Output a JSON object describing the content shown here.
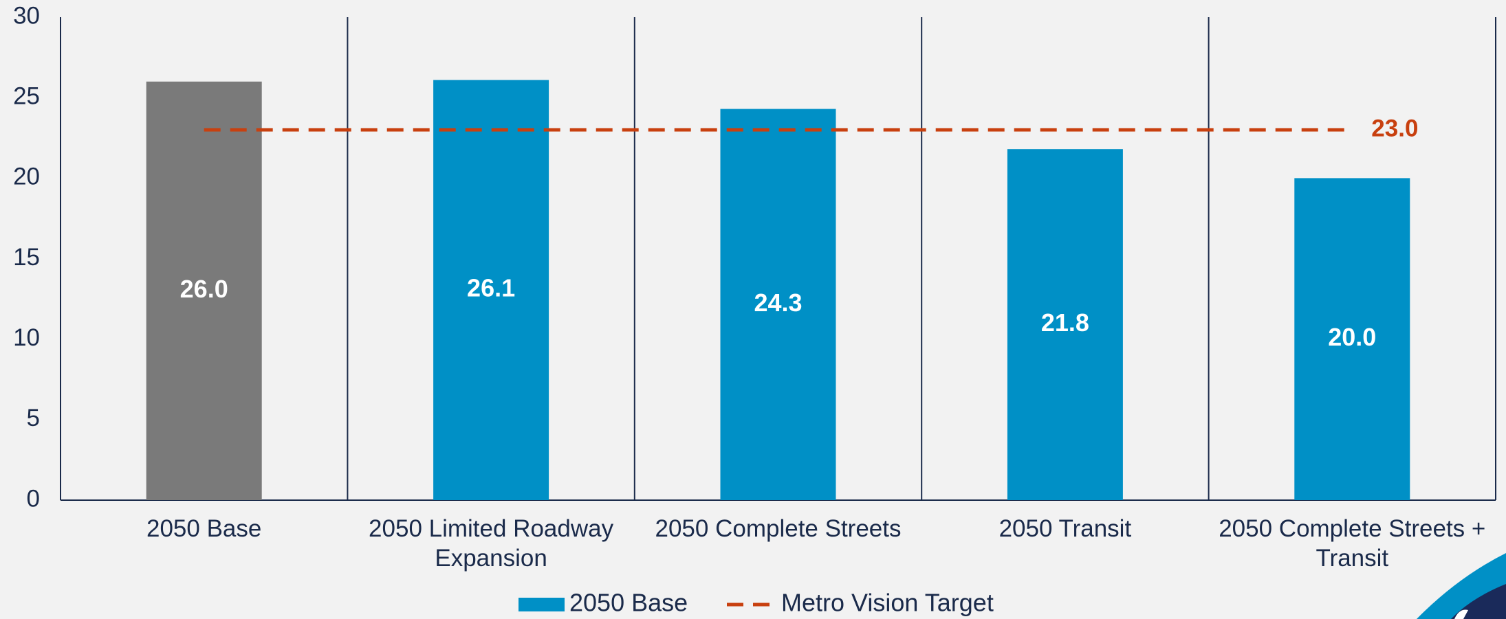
{
  "chart_data": {
    "type": "bar",
    "categories": [
      "2050 Base",
      "2050 Limited Roadway Expansion",
      "2050 Complete Streets",
      "2050 Transit",
      "2050 Complete Streets + Transit"
    ],
    "series": [
      {
        "name": "2050 Base",
        "color": "#0090c6",
        "values": [
          26.0,
          26.1,
          24.3,
          21.8,
          20.0
        ],
        "value_labels": [
          "26.0",
          "26.1",
          "24.3",
          "21.8",
          "20.0"
        ],
        "colors": [
          "#7a7a7a",
          "#0090c6",
          "#0090c6",
          "#0090c6",
          "#0090c6"
        ]
      }
    ],
    "target": {
      "name": "Metro Vision Target",
      "color": "#c8400f",
      "value": 23.0,
      "value_label": "23.0"
    },
    "ylim": [
      0,
      30
    ],
    "yticks": [
      0,
      5,
      10,
      15,
      20,
      25,
      30
    ],
    "grid": false
  }
}
